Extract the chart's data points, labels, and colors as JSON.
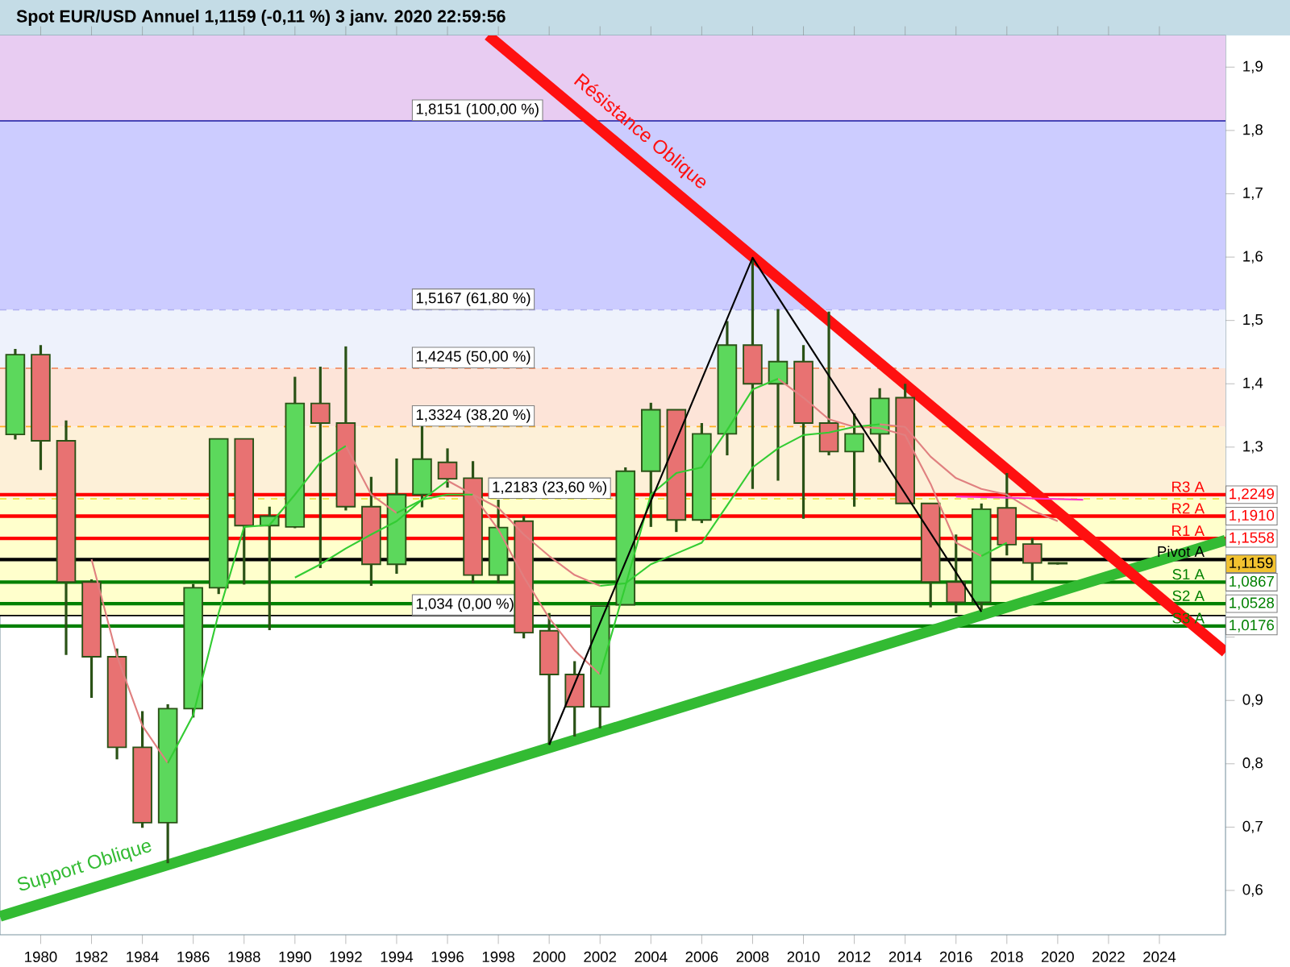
{
  "chart_data": {
    "type": "candlestick",
    "title": "Spot EUR/USD Annuel 1,1159 (-0,11 %) 3 janv. 2020 22:59:56",
    "x": [
      1979,
      1980,
      1981,
      1982,
      1983,
      1984,
      1985,
      1986,
      1987,
      1988,
      1989,
      1990,
      1991,
      1992,
      1993,
      1994,
      1995,
      1996,
      1997,
      1998,
      1999,
      2000,
      2001,
      2002,
      2003,
      2004,
      2005,
      2006,
      2007,
      2008,
      2009,
      2010,
      2011,
      2012,
      2013,
      2014,
      2015,
      2016,
      2017,
      2018,
      2019,
      2020
    ],
    "ohlc": [
      [
        1.32,
        1.455,
        1.312,
        1.446
      ],
      [
        1.446,
        1.461,
        1.264,
        1.31
      ],
      [
        1.31,
        1.342,
        0.972,
        1.087
      ],
      [
        1.087,
        1.091,
        0.904,
        0.969
      ],
      [
        0.969,
        0.982,
        0.807,
        0.826
      ],
      [
        0.826,
        0.883,
        0.699,
        0.707
      ],
      [
        0.707,
        0.894,
        0.643,
        0.887
      ],
      [
        0.887,
        1.084,
        0.873,
        1.078
      ],
      [
        1.078,
        1.313,
        1.068,
        1.313
      ],
      [
        1.313,
        1.313,
        1.083,
        1.176
      ],
      [
        1.176,
        1.206,
        1.011,
        1.191
      ],
      [
        1.174,
        1.411,
        1.172,
        1.369
      ],
      [
        1.369,
        1.427,
        1.109,
        1.338
      ],
      [
        1.338,
        1.459,
        1.2,
        1.206
      ],
      [
        1.206,
        1.253,
        1.081,
        1.115
      ],
      [
        1.115,
        1.282,
        1.1,
        1.225
      ],
      [
        1.225,
        1.333,
        1.205,
        1.281
      ],
      [
        1.276,
        1.298,
        1.236,
        1.25
      ],
      [
        1.251,
        1.278,
        1.085,
        1.098
      ],
      [
        1.098,
        1.217,
        1.085,
        1.173
      ],
      [
        1.183,
        1.191,
        0.998,
        1.007
      ],
      [
        1.01,
        1.038,
        0.83,
        0.941
      ],
      [
        0.941,
        0.962,
        0.843,
        0.89
      ],
      [
        0.89,
        1.049,
        0.856,
        1.049
      ],
      [
        1.051,
        1.268,
        1.051,
        1.262
      ],
      [
        1.262,
        1.37,
        1.174,
        1.359
      ],
      [
        1.359,
        1.359,
        1.166,
        1.185
      ],
      [
        1.185,
        1.338,
        1.18,
        1.321
      ],
      [
        1.321,
        1.499,
        1.287,
        1.461
      ],
      [
        1.461,
        1.599,
        1.234,
        1.4
      ],
      [
        1.4,
        1.518,
        1.247,
        1.435
      ],
      [
        1.435,
        1.461,
        1.187,
        1.338
      ],
      [
        1.338,
        1.514,
        1.287,
        1.293
      ],
      [
        1.293,
        1.353,
        1.206,
        1.321
      ],
      [
        1.321,
        1.393,
        1.276,
        1.377
      ],
      [
        1.378,
        1.4,
        1.211,
        1.211
      ],
      [
        1.211,
        1.211,
        1.047,
        1.087
      ],
      [
        1.087,
        1.162,
        1.038,
        1.055
      ],
      [
        1.055,
        1.211,
        1.043,
        1.202
      ],
      [
        1.204,
        1.259,
        1.129,
        1.146
      ],
      [
        1.147,
        1.156,
        1.089,
        1.117
      ],
      [
        1.1172,
        1.118,
        1.1145,
        1.1159
      ]
    ],
    "colors": [
      "#5cd85c",
      "#e87272",
      "#e87272",
      "#e87272",
      "#e87272",
      "#e87272",
      "#5cd85c",
      "#5cd85c",
      "#5cd85c",
      "#e87272",
      "#5cd85c",
      "#5cd85c",
      "#e87272",
      "#e87272",
      "#e87272",
      "#5cd85c",
      "#5cd85c",
      "#e87272",
      "#e87272",
      "#5cd85c",
      "#e87272",
      "#e87272",
      "#e87272",
      "#5cd85c",
      "#5cd85c",
      "#5cd85c",
      "#e87272",
      "#5cd85c",
      "#5cd85c",
      "#e87272",
      "#5cd85c",
      "#e87272",
      "#e87272",
      "#5cd85c",
      "#5cd85c",
      "#e87272",
      "#e87272",
      "#e87272",
      "#5cd85c",
      "#e87272",
      "#e87272",
      "#e87272"
    ],
    "series": [
      {
        "type": "line",
        "color": "#e08080",
        "x": [
          1982,
          1983,
          1984,
          1985,
          1986,
          1987,
          1988,
          1989,
          1990,
          1991,
          1992,
          1993,
          1994,
          1995,
          1996,
          1997,
          1998,
          1999,
          2000,
          2001,
          2002,
          2003,
          2004,
          2005,
          2006,
          2007,
          2008,
          2009,
          2010,
          2011,
          2012,
          2013,
          2014,
          2015,
          2016,
          2017
        ],
        "values": [
          1.123,
          0.97,
          0.86,
          0.801,
          null,
          null,
          null,
          null,
          null,
          null,
          1.302,
          1.225,
          1.196,
          null,
          1.247,
          1.225,
          1.17,
          1.095,
          1.03,
          0.979,
          0.941,
          null,
          null,
          null,
          null,
          null,
          null,
          1.408,
          1.378,
          1.344,
          1.332,
          1.33,
          1.319,
          1.242,
          1.149,
          1.128
        ]
      },
      {
        "type": "line",
        "color": "#33cc33",
        "x": [
          1985,
          1986,
          1987,
          1988,
          1989,
          1990,
          1991,
          1992,
          1993,
          1994,
          1995,
          1996,
          1997,
          1998,
          1999,
          2000,
          2001,
          2002,
          2003,
          2004,
          2005,
          2006,
          2007,
          2008,
          2009,
          2010,
          2011,
          2012,
          2013,
          2014,
          2015,
          2016,
          2017,
          2018
        ],
        "values": [
          0.801,
          0.877,
          1.038,
          1.174,
          1.177,
          1.225,
          1.276,
          1.302,
          null,
          1.196,
          1.217,
          1.247,
          null,
          null,
          null,
          null,
          null,
          0.941,
          1.081,
          1.225,
          1.259,
          1.268,
          1.327,
          1.391,
          1.408,
          null,
          null,
          null,
          null,
          null,
          null,
          null,
          1.128,
          1.149
        ]
      },
      {
        "type": "line",
        "color": "#33cc33",
        "x": [
          1990,
          1991,
          1992,
          1993,
          1994,
          1995,
          1996,
          1997,
          1998,
          1999,
          2000,
          2001,
          2002,
          2003,
          2004,
          2005,
          2006,
          2007,
          2008,
          2009,
          2010,
          2011,
          2012,
          2013
        ],
        "values": [
          1.094,
          1.115,
          1.14,
          1.162,
          1.183,
          1.217,
          1.225,
          1.225,
          null,
          null,
          null,
          null,
          1.081,
          1.085,
          1.115,
          1.132,
          1.149,
          1.208,
          1.268,
          1.298,
          1.319,
          1.323,
          1.332,
          1.336
        ]
      },
      {
        "type": "line",
        "color": "#e08080",
        "x": [
          1997,
          1998,
          1999,
          2000,
          2001,
          2002,
          2003,
          2004,
          2005,
          2006,
          2007,
          2008,
          2009,
          2010,
          2011,
          2012,
          2013,
          2014,
          2015,
          2016,
          2017,
          2018,
          2019,
          2020
        ],
        "values": [
          1.225,
          1.204,
          1.162,
          1.128,
          1.098,
          1.081,
          null,
          null,
          null,
          null,
          null,
          null,
          null,
          null,
          null,
          null,
          1.336,
          1.332,
          1.285,
          1.251,
          1.234,
          1.225,
          1.2,
          1.183
        ]
      },
      {
        "type": "line",
        "color": "#ff33cc",
        "x": [
          2016,
          2021
        ],
        "values": [
          1.222,
          1.217
        ]
      },
      {
        "type": "line",
        "color": "#000000",
        "x": [
          2000,
          2008,
          2017
        ],
        "values": [
          0.83,
          1.599,
          1.04
        ]
      },
      {
        "type": "line",
        "color": "#33bb33",
        "x": [
          1978.4,
          2026.6
        ],
        "values": [
          0.559,
          1.153
        ]
      },
      {
        "type": "line",
        "color": "#ff1010",
        "x": [
          1997.6,
          2026.6
        ],
        "values": [
          1.95,
          0.976
        ]
      }
    ],
    "bands": [
      {
        "axis": "y",
        "from": 1.8151,
        "to": 1.95,
        "color": "#e8ccf2"
      },
      {
        "axis": "y",
        "from": 1.5167,
        "to": 1.8151,
        "color": "#ccccff"
      },
      {
        "axis": "y",
        "from": 1.4245,
        "to": 1.5167,
        "color": "#eef2fc"
      },
      {
        "axis": "y",
        "from": 1.3324,
        "to": 1.4245,
        "color": "#fde4d8"
      },
      {
        "axis": "y",
        "from": 1.2183,
        "to": 1.3324,
        "color": "#fdf0d8"
      },
      {
        "axis": "y",
        "from": 1.034,
        "to": 1.2183,
        "color": "#ffffcc"
      }
    ],
    "ref_lines": [
      {
        "axis": "y",
        "value": 1.8151,
        "color": "#1a1aa0",
        "line_style": "solid"
      },
      {
        "axis": "y",
        "value": 1.5167,
        "color": "#b0b0f0",
        "line_style": "dashed"
      },
      {
        "axis": "y",
        "value": 1.4245,
        "color": "#f08050",
        "line_style": "dashed"
      },
      {
        "axis": "y",
        "value": 1.3324,
        "color": "#ffb020",
        "line_style": "dashed"
      },
      {
        "axis": "y",
        "value": 1.2183,
        "color": "#e8e020",
        "line_style": "dashed"
      },
      {
        "axis": "y",
        "value": 1.034,
        "color": "#000000",
        "line_style": "solid"
      },
      {
        "axis": "y",
        "value": 1.2249,
        "label": "R3 A",
        "color": "#ff0000",
        "line_style": "solid"
      },
      {
        "axis": "y",
        "value": 1.191,
        "label": "R2 A",
        "color": "#ff0000",
        "line_style": "solid"
      },
      {
        "axis": "y",
        "value": 1.1558,
        "label": "R1 A",
        "color": "#ff0000",
        "line_style": "solid"
      },
      {
        "axis": "y",
        "value": 1.1225,
        "label": "Pivot A",
        "color": "#000000",
        "line_style": "solid"
      },
      {
        "axis": "y",
        "value": 1.0867,
        "label": "S1 A",
        "color": "#008000",
        "line_style": "solid"
      },
      {
        "axis": "y",
        "value": 1.0528,
        "label": "S2 A",
        "color": "#008000",
        "line_style": "solid"
      },
      {
        "axis": "y",
        "value": 1.0176,
        "label": "S3 A",
        "color": "#008000",
        "line_style": "solid"
      }
    ],
    "annotations": [
      {
        "text": "Résistance Oblique",
        "x": 2003,
        "y": 1.769
      },
      {
        "text": "Support Oblique",
        "x": 1982,
        "y": 0.603
      },
      {
        "text": "1,8151 (100,00 %)",
        "x": 1994.6,
        "y": 1.8151
      },
      {
        "text": "1,5167 (61,80 %)",
        "x": 1994.6,
        "y": 1.5167
      },
      {
        "text": "1,4245 (50,00 %)",
        "x": 1994.6,
        "y": 1.4245
      },
      {
        "text": "1,3324 (38,20 %)",
        "x": 1994.6,
        "y": 1.3324
      },
      {
        "text": "1,2183 (23,60 %)",
        "x": 1997.6,
        "y": 1.2183
      },
      {
        "text": "1,034 (0,00 %)",
        "x": 1994.6,
        "y": 1.034
      },
      {
        "text": "1,2249",
        "x": 2026.6,
        "y": 1.2249
      },
      {
        "text": "1,1910",
        "x": 2026.6,
        "y": 1.191
      },
      {
        "text": "1,1558",
        "x": 2026.6,
        "y": 1.1558
      },
      {
        "text": "1,1159",
        "x": 2026.6,
        "y": 1.1159
      },
      {
        "text": "1,0867",
        "x": 2026.6,
        "y": 1.0867
      },
      {
        "text": "1,0528",
        "x": 2026.6,
        "y": 1.0528
      },
      {
        "text": "1,0176",
        "x": 2026.6,
        "y": 1.0176
      }
    ],
    "xlim": [
      1978.4,
      2026.6
    ],
    "xticks": [
      1980,
      1982,
      1984,
      1986,
      1988,
      1990,
      1992,
      1994,
      1996,
      1998,
      2000,
      2002,
      2004,
      2006,
      2008,
      2010,
      2012,
      2014,
      2016,
      2018,
      2020,
      2022,
      2024
    ],
    "ylim": [
      0.53,
      1.95
    ],
    "yticks": [
      {
        "value": 0.6,
        "label": "0,6"
      },
      {
        "value": 0.7,
        "label": "0,7"
      },
      {
        "value": 0.8,
        "label": "0,8"
      },
      {
        "value": 0.9,
        "label": "0,9"
      },
      {
        "value": 1.0,
        "label": null
      },
      {
        "value": 1.1,
        "label": null
      },
      {
        "value": 1.2,
        "label": null
      },
      {
        "value": 1.3,
        "label": "1,3"
      },
      {
        "value": 1.4,
        "label": "1,4"
      },
      {
        "value": 1.5,
        "label": "1,5"
      },
      {
        "value": 1.6,
        "label": "1,6"
      },
      {
        "value": 1.7,
        "label": "1,7"
      },
      {
        "value": 1.8,
        "label": "1,8"
      },
      {
        "value": 1.9,
        "label": "1,9"
      }
    ]
  }
}
